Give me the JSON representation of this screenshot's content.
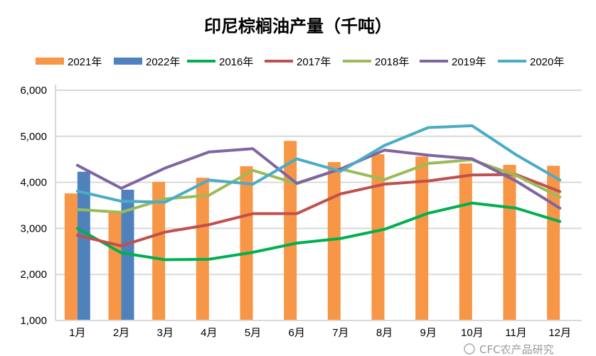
{
  "chart_data": {
    "type": "bar+line",
    "title": "印尼棕榈油产量（千吨）",
    "categories": [
      "1月",
      "2月",
      "3月",
      "4月",
      "5月",
      "6月",
      "7月",
      "8月",
      "9月",
      "10月",
      "11月",
      "12月"
    ],
    "ylim": [
      1000,
      6000
    ],
    "yticks": [
      "1,000",
      "2,000",
      "3,000",
      "4,000",
      "5,000",
      "6,000"
    ],
    "ytick_values": [
      1000,
      2000,
      3000,
      4000,
      5000,
      6000
    ],
    "grid": true,
    "legend_position": "top",
    "bar_series": [
      {
        "name": "2021年",
        "color": "#F79646",
        "values": [
          3760,
          3350,
          4010,
          4100,
          4350,
          4900,
          4440,
          4610,
          4560,
          4410,
          4380,
          4360
        ]
      },
      {
        "name": "2022年",
        "color": "#4F81BD",
        "values": [
          4230,
          3840,
          null,
          null,
          null,
          null,
          null,
          null,
          null,
          null,
          null,
          null
        ]
      }
    ],
    "line_series": [
      {
        "name": "2016年",
        "color": "#00B050",
        "values": [
          3000,
          2470,
          2320,
          2330,
          2480,
          2680,
          2780,
          2980,
          3330,
          3550,
          3440,
          3150
        ]
      },
      {
        "name": "2017年",
        "color": "#C0504D",
        "values": [
          2850,
          2620,
          2920,
          3080,
          3320,
          3320,
          3750,
          3960,
          4030,
          4160,
          4170,
          3800
        ]
      },
      {
        "name": "2018年",
        "color": "#9BBB59",
        "values": [
          3410,
          3350,
          3640,
          3720,
          4260,
          3970,
          4290,
          4060,
          4410,
          4490,
          4150,
          3680
        ]
      },
      {
        "name": "2019年",
        "color": "#8064A2",
        "values": [
          4370,
          3870,
          4310,
          4660,
          4730,
          3980,
          4290,
          4700,
          4590,
          4510,
          4030,
          3440
        ]
      },
      {
        "name": "2020年",
        "color": "#4BACC6",
        "values": [
          3810,
          3590,
          3570,
          4050,
          3960,
          4510,
          4240,
          4800,
          5190,
          5230,
          4600,
          4050
        ]
      }
    ],
    "watermark": "CFC农产品研究"
  }
}
